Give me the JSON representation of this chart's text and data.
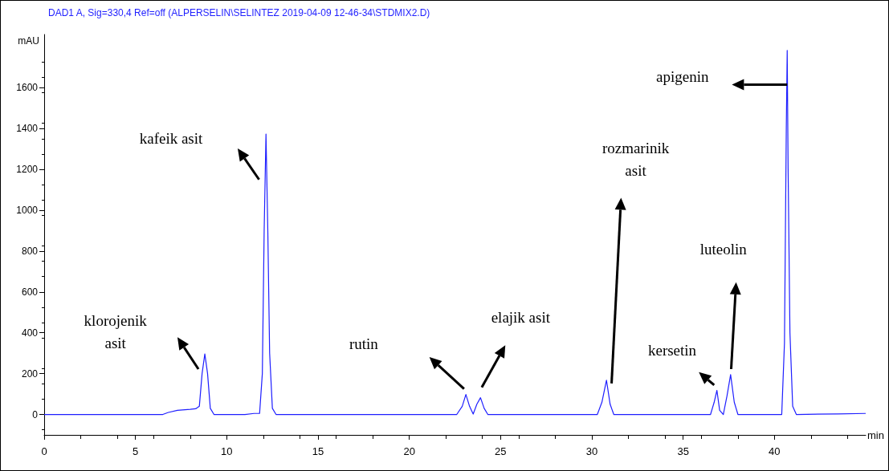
{
  "chart_data": {
    "type": "line",
    "title": "DAD1 A, Sig=330,4 Ref=off (ALPERSELIN\\SELINTEZ 2019-04-09 12-46-34\\STDMIX2.D)",
    "xlabel": "min",
    "ylabel": "mAU",
    "xlim": [
      0,
      45
    ],
    "xticks": [
      0,
      5,
      10,
      15,
      20,
      25,
      30,
      35,
      40
    ],
    "ylim": [
      -100,
      1860
    ],
    "yticks": [
      0,
      200,
      400,
      600,
      800,
      1000,
      1200,
      1400,
      1600
    ],
    "marker": "none",
    "line_style": "solid",
    "series": [
      {
        "color": "#1f1fff",
        "x": [
          0,
          6.5,
          6.8,
          7.3,
          8.0,
          8.3,
          8.5,
          8.65,
          8.8,
          8.95,
          9.1,
          9.3,
          11.0,
          11.5,
          11.8,
          11.95,
          12.05,
          12.15,
          12.25,
          12.35,
          12.5,
          12.7,
          22.6,
          22.9,
          23.1,
          23.3,
          23.5,
          23.7,
          23.9,
          24.1,
          24.3,
          30.3,
          30.55,
          30.8,
          31.0,
          31.2,
          36.5,
          36.7,
          36.85,
          37.0,
          37.2,
          37.4,
          37.6,
          37.8,
          38.0,
          40.4,
          40.55,
          40.65,
          40.7,
          40.75,
          40.85,
          41.0,
          41.2,
          43.5,
          45
        ],
        "values": [
          0,
          0,
          10,
          20,
          25,
          28,
          40,
          200,
          296,
          200,
          30,
          0,
          0,
          5,
          5,
          200,
          900,
          1373,
          900,
          300,
          30,
          0,
          0,
          40,
          98,
          40,
          2,
          50,
          82,
          30,
          0,
          0,
          60,
          168,
          50,
          0,
          0,
          60,
          118,
          20,
          0,
          90,
          195,
          60,
          0,
          0,
          350,
          1400,
          1782,
          1200,
          400,
          40,
          0,
          3,
          5
        ]
      }
    ],
    "annotations": [
      "klorojenik\nasit",
      "kafeik asit",
      "rutin",
      "elajik asit",
      "rozmarinik\nasit",
      "kersetin",
      "luteolin",
      "apigenin"
    ]
  }
}
